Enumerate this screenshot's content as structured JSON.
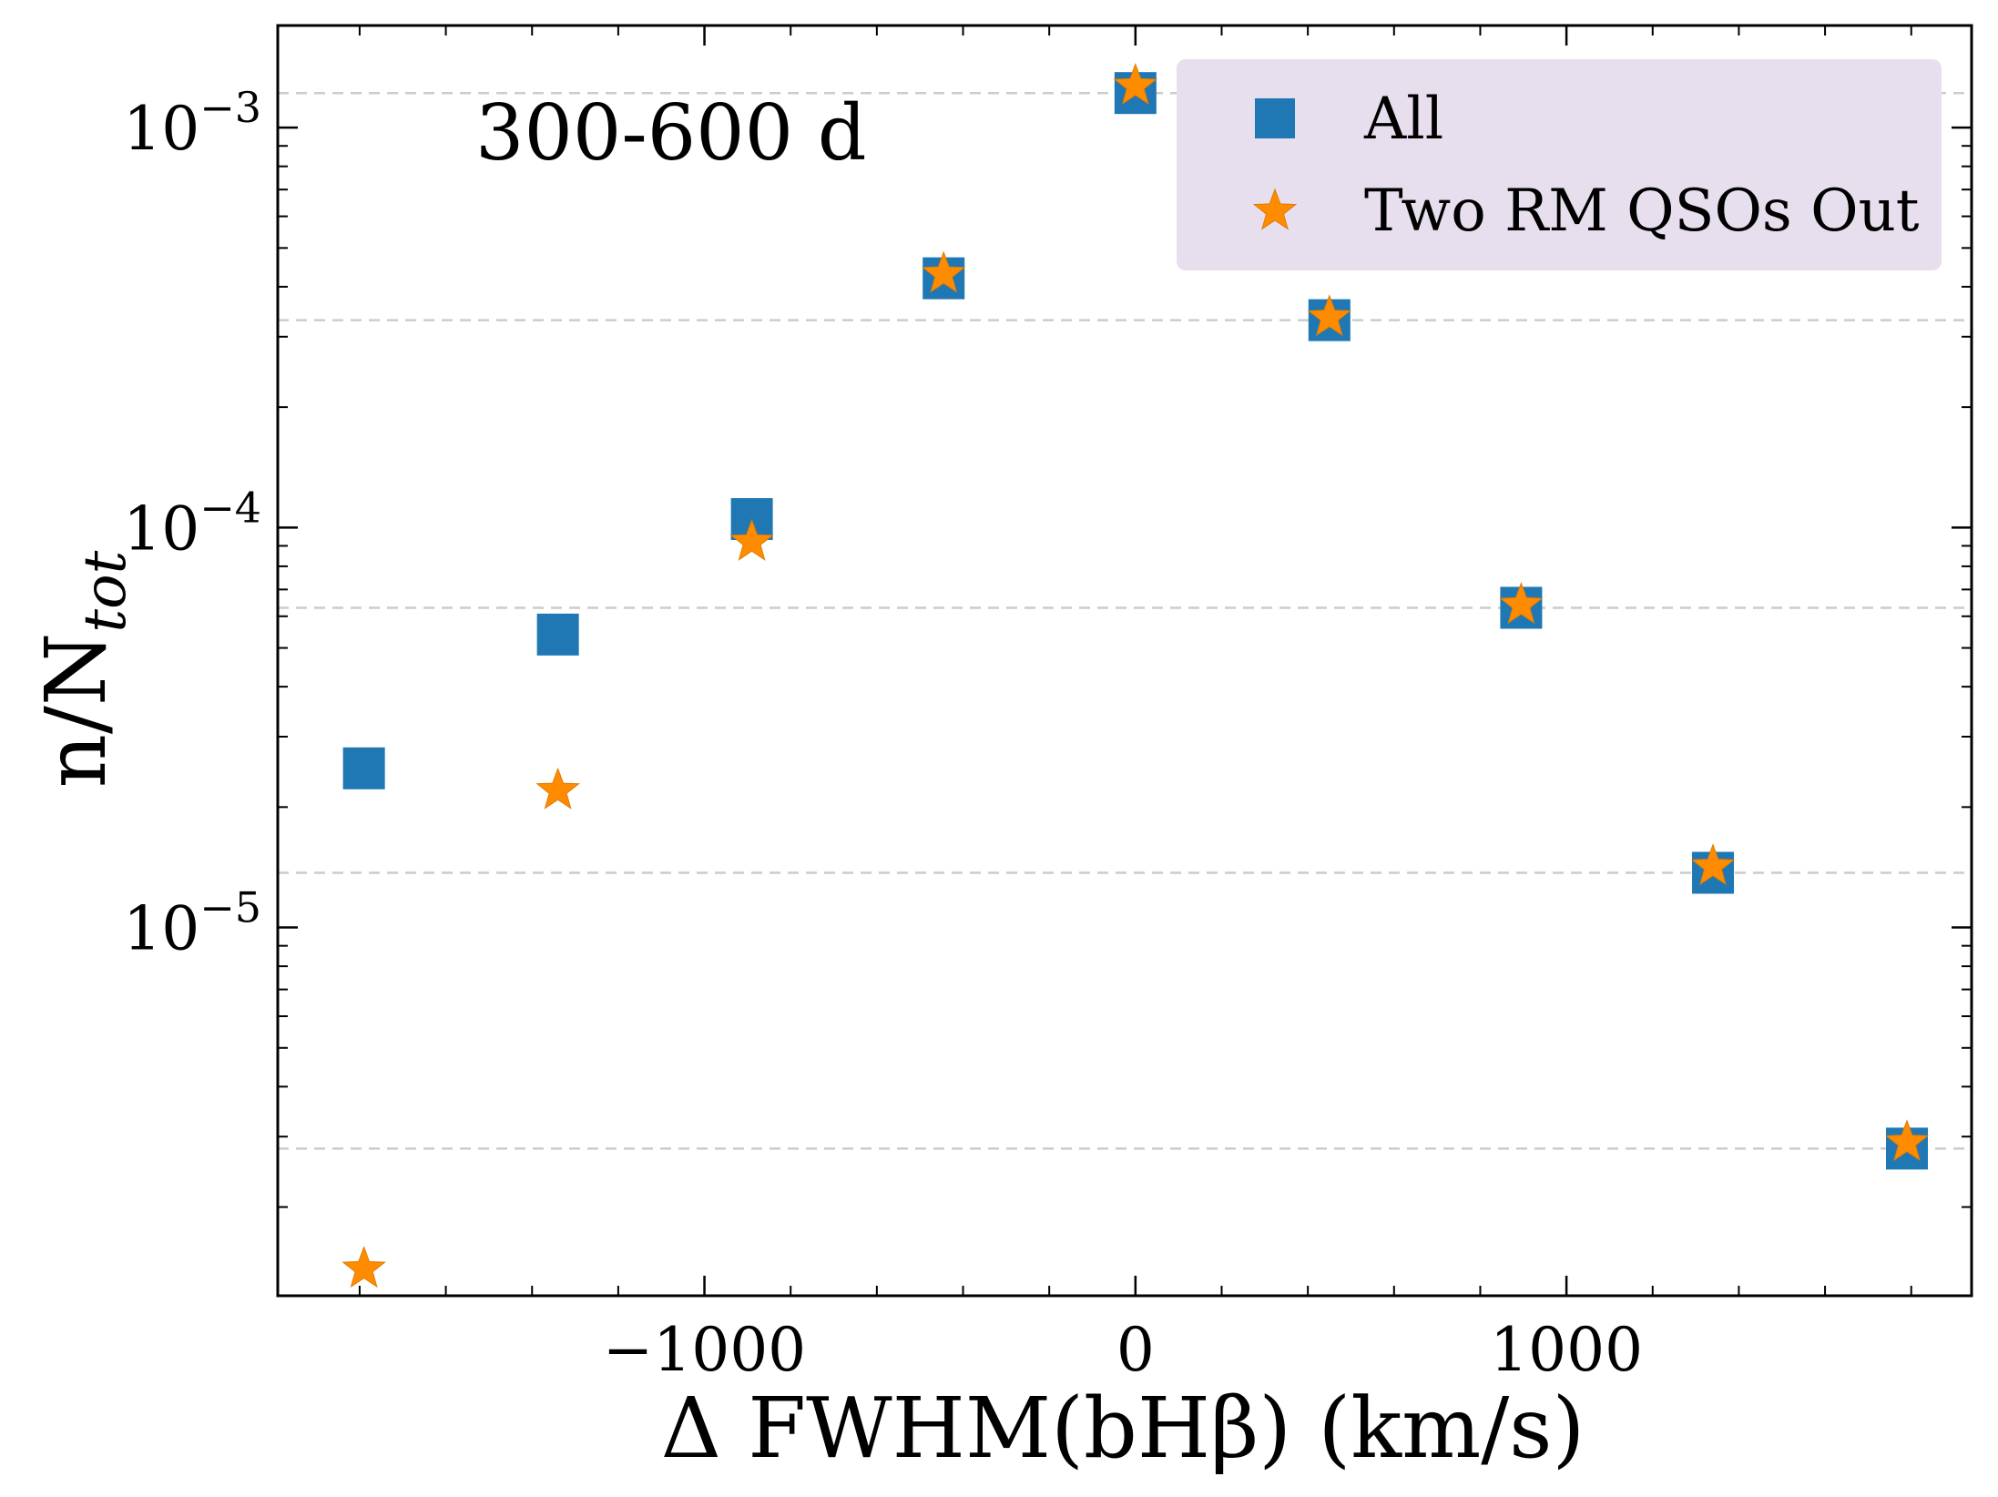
{
  "chart_data": {
    "type": "scatter",
    "annotation": "300-600 d",
    "xlabel": "Δ FWHM(bHβ) (km/s)",
    "ylabel": "n/N_tot",
    "ylabel_main": "n/N",
    "ylabel_sub": "tot",
    "xlim": [
      -1990,
      1940
    ],
    "ylim": [
      1.2e-06,
      0.0018
    ],
    "yscale": "log",
    "x_major_ticks": [
      -1000,
      0,
      1000
    ],
    "x_tick_labels": [
      "−1000",
      "0",
      "1000"
    ],
    "x_minor_ticks": [
      -1800,
      -1600,
      -1400,
      -1200,
      -800,
      -600,
      -400,
      -200,
      200,
      400,
      600,
      800,
      1200,
      1400,
      1600,
      1800
    ],
    "y_major_ticks": [
      1e-05,
      0.0001,
      0.001
    ],
    "y_tick_labels": [
      {
        "base": "10",
        "exp": "−5"
      },
      {
        "base": "10",
        "exp": "−4"
      },
      {
        "base": "10",
        "exp": "−3"
      }
    ],
    "hlines": [
      0.00122,
      0.00033,
      6.3e-05,
      1.37e-05,
      2.8e-06
    ],
    "legend_position": "top-right",
    "series": [
      {
        "name": "All",
        "marker": "square",
        "color": "#1f77b4",
        "x": [
          -1790,
          -1340,
          -890,
          -445,
          0,
          450,
          895,
          1340,
          1790
        ],
        "y": [
          2.5e-05,
          5.4e-05,
          0.000105,
          0.00042,
          0.00122,
          0.00033,
          6.3e-05,
          1.37e-05,
          2.8e-06
        ]
      },
      {
        "name": "Two RM QSOs Out",
        "marker": "star",
        "color": "#ff8c00",
        "x": [
          -1790,
          -1340,
          -890,
          -445,
          0,
          450,
          895,
          1340,
          1790
        ],
        "y": [
          1.4e-06,
          2.2e-05,
          9.2e-05,
          0.00043,
          0.00127,
          0.000335,
          6.4e-05,
          1.42e-05,
          2.9e-06
        ]
      }
    ]
  }
}
